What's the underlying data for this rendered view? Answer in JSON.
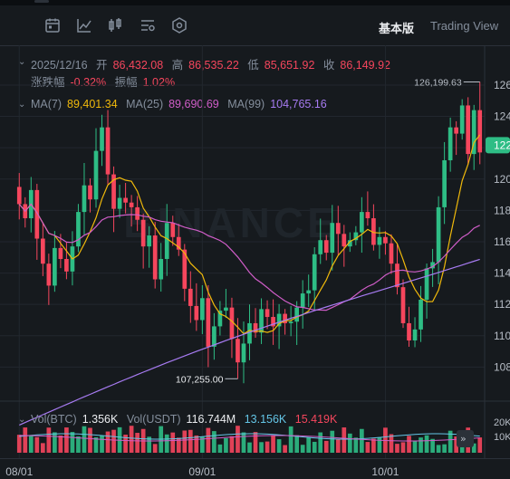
{
  "header": {
    "mode_active": "基本版",
    "mode_other": "Trading View"
  },
  "toolbar": {
    "icons": [
      "calendar-icon",
      "line-chart-icon",
      "candlestick-icon",
      "indicator-settings-icon",
      "hexagon-settings-icon"
    ]
  },
  "ohlc": {
    "date": "2025/12/16",
    "open_label": "开",
    "open": "86,432.08",
    "high_label": "高",
    "high": "86,535.22",
    "low_label": "低",
    "low": "85,651.92",
    "close_label": "收",
    "close": "86,149.92",
    "change_label": "涨跌幅",
    "change": "-0.32%",
    "amplitude_label": "振幅",
    "amplitude": "1.02%"
  },
  "ma": {
    "ma7_label": "MA(7)",
    "ma7": "89,401.34",
    "ma25_label": "MA(25)",
    "ma25": "89,690.69",
    "ma99_label": "MA(99)",
    "ma99": "104,765.16"
  },
  "vol": {
    "btc_label": "Vol(BTC)",
    "btc": "1.356K",
    "usdt_label": "Vol(USDT)",
    "usdt": "116.744M",
    "v1": "13.156K",
    "v2": "15.419K"
  },
  "colors": {
    "up": "#2ebd85",
    "down": "#f6465d",
    "ma7": "#f0b90b",
    "ma25": "#d05dc8",
    "ma99": "#a77bf2",
    "price_tag": "#2ebd85"
  },
  "chart_data": {
    "type": "candlestick",
    "x_ticks": [
      "08/01",
      "09/01",
      "10/01"
    ],
    "y_ticks": [
      "108",
      "110",
      "112",
      "114",
      "116",
      "118",
      "120",
      "122",
      "124",
      "126"
    ],
    "y_axis_unit": "K",
    "ylim": [
      106000,
      127500
    ],
    "current_price_label": "122",
    "annotations": {
      "high": "126,199.63",
      "low": "107,255.00"
    },
    "volume_ticks": [
      "20K",
      "10K"
    ],
    "closes": [
      118400,
      117500,
      119300,
      116200,
      114600,
      113200,
      115600,
      114900,
      114100,
      115700,
      117900,
      119600,
      118700,
      121800,
      123300,
      120300,
      118100,
      118800,
      118500,
      118200,
      117400,
      115700,
      116400,
      113600,
      114900,
      117200,
      116300,
      115500,
      113000,
      111900,
      111000,
      112400,
      109300,
      110600,
      111600,
      111800,
      109800,
      108300,
      109500,
      110800,
      110200,
      111700,
      111200,
      110600,
      111400,
      110800,
      110900,
      111800,
      112700,
      112900,
      115200,
      116100,
      115300,
      117200,
      116500,
      115700,
      116100,
      116600,
      117900,
      117500,
      115800,
      116300,
      115900,
      114600,
      113100,
      110800,
      109700,
      110400,
      112300,
      114300,
      114700,
      118200,
      121200,
      123300,
      122900,
      124700,
      121600,
      124400,
      121700
    ]
  }
}
